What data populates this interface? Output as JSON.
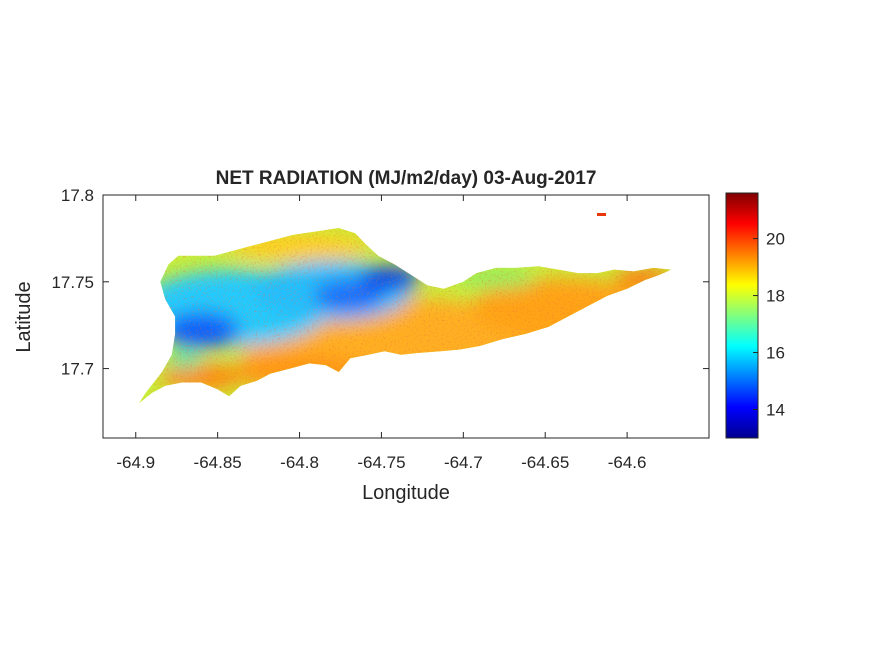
{
  "figure": {
    "title": "NET RADIATION (MJ/m2/day) 03-Aug-2017",
    "xlabel": "Longitude",
    "ylabel": "Latitude",
    "x_ticks": [
      "-64.9",
      "-64.85",
      "-64.8",
      "-64.75",
      "-64.7",
      "-64.65",
      "-64.6"
    ],
    "y_ticks": [
      "17.8",
      "17.75",
      "17.7"
    ],
    "colorbar": {
      "colormap": "jet",
      "range": [
        13,
        21.6
      ],
      "ticks": [
        "14",
        "16",
        "18",
        "20"
      ]
    },
    "colors": {
      "axis": "#262626",
      "background": "#ffffff"
    }
  },
  "chart_data": {
    "type": "heatmap",
    "title": "NET RADIATION (MJ/m2/day) 03-Aug-2017",
    "xlabel": "Longitude",
    "ylabel": "Latitude",
    "xlim": [
      -64.92,
      -64.55
    ],
    "ylim": [
      17.66,
      17.8
    ],
    "clim": [
      13,
      21.6
    ],
    "colormap": "jet",
    "grid": false,
    "region_outline_lonlat": [
      [
        -64.898,
        17.68
      ],
      [
        -64.89,
        17.686
      ],
      [
        -64.882,
        17.69
      ],
      [
        -64.872,
        17.692
      ],
      [
        -64.86,
        17.692
      ],
      [
        -64.85,
        17.688
      ],
      [
        -64.843,
        17.684
      ],
      [
        -64.836,
        17.69
      ],
      [
        -64.826,
        17.693
      ],
      [
        -64.818,
        17.697
      ],
      [
        -64.806,
        17.7
      ],
      [
        -64.794,
        17.703
      ],
      [
        -64.784,
        17.702
      ],
      [
        -64.776,
        17.698
      ],
      [
        -64.769,
        17.706
      ],
      [
        -64.758,
        17.708
      ],
      [
        -64.748,
        17.71
      ],
      [
        -64.738,
        17.708
      ],
      [
        -64.728,
        17.709
      ],
      [
        -64.714,
        17.71
      ],
      [
        -64.702,
        17.711
      ],
      [
        -64.69,
        17.713
      ],
      [
        -64.676,
        17.717
      ],
      [
        -64.662,
        17.72
      ],
      [
        -64.648,
        17.724
      ],
      [
        -64.636,
        17.73
      ],
      [
        -64.624,
        17.736
      ],
      [
        -64.612,
        17.742
      ],
      [
        -64.6,
        17.746
      ],
      [
        -64.589,
        17.751
      ],
      [
        -64.58,
        17.754
      ],
      [
        -64.573,
        17.757
      ],
      [
        -64.584,
        17.758
      ],
      [
        -64.596,
        17.756
      ],
      [
        -64.608,
        17.757
      ],
      [
        -64.618,
        17.755
      ],
      [
        -64.63,
        17.755
      ],
      [
        -64.642,
        17.757
      ],
      [
        -64.654,
        17.759
      ],
      [
        -64.668,
        17.758
      ],
      [
        -64.68,
        17.758
      ],
      [
        -64.692,
        17.755
      ],
      [
        -64.7,
        17.75
      ],
      [
        -64.712,
        17.746
      ],
      [
        -64.722,
        17.748
      ],
      [
        -64.732,
        17.754
      ],
      [
        -64.742,
        17.76
      ],
      [
        -64.752,
        17.765
      ],
      [
        -64.76,
        17.772
      ],
      [
        -64.766,
        17.778
      ],
      [
        -64.776,
        17.781
      ],
      [
        -64.79,
        17.779
      ],
      [
        -64.804,
        17.777
      ],
      [
        -64.816,
        17.774
      ],
      [
        -64.828,
        17.771
      ],
      [
        -64.84,
        17.768
      ],
      [
        -64.852,
        17.765
      ],
      [
        -64.866,
        17.765
      ],
      [
        -64.874,
        17.765
      ],
      [
        -64.88,
        17.76
      ],
      [
        -64.885,
        17.75
      ],
      [
        -64.882,
        17.74
      ],
      [
        -64.876,
        17.73
      ],
      [
        -64.876,
        17.72
      ],
      [
        -64.878,
        17.708
      ],
      [
        -64.884,
        17.698
      ],
      [
        -64.894,
        17.686
      ]
    ],
    "dry_warm_south_outline_lonlat": [
      [
        -64.768,
        17.706
      ],
      [
        -64.758,
        17.708
      ],
      [
        -64.748,
        17.71
      ],
      [
        -64.738,
        17.708
      ],
      [
        -64.728,
        17.709
      ],
      [
        -64.714,
        17.71
      ],
      [
        -64.702,
        17.711
      ],
      [
        -64.69,
        17.713
      ],
      [
        -64.676,
        17.717
      ],
      [
        -64.662,
        17.72
      ],
      [
        -64.648,
        17.724
      ],
      [
        -64.636,
        17.73
      ],
      [
        -64.624,
        17.736
      ],
      [
        -64.612,
        17.742
      ],
      [
        -64.6,
        17.746
      ],
      [
        -64.589,
        17.751
      ],
      [
        -64.58,
        17.754
      ],
      [
        -64.598,
        17.754
      ],
      [
        -64.62,
        17.748
      ],
      [
        -64.645,
        17.742
      ],
      [
        -64.665,
        17.736
      ],
      [
        -64.685,
        17.732
      ],
      [
        -64.705,
        17.73
      ],
      [
        -64.725,
        17.728
      ],
      [
        -64.748,
        17.722
      ],
      [
        -64.764,
        17.714
      ]
    ],
    "notes_visible": {
      "low_values_core": "blue (~13-15) along west-central ridge near -64.87..-64.74",
      "high_values": "orange/red (~19-21) along south coast and east end"
    }
  }
}
